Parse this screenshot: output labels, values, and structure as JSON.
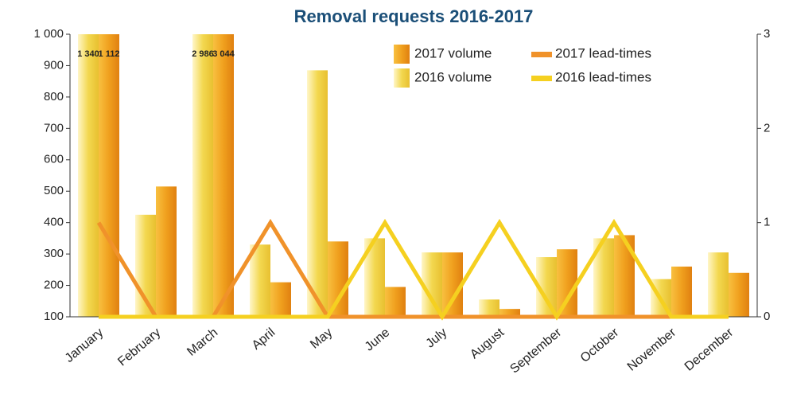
{
  "chart_data": {
    "type": "bar",
    "title": "Removal requests 2016-2017",
    "categories": [
      "January",
      "February",
      "March",
      "April",
      "May",
      "June",
      "July",
      "August",
      "September",
      "October",
      "November",
      "December"
    ],
    "series": [
      {
        "name": "2016 volume",
        "color": "#f3d850",
        "values": [
          1340,
          425,
          2986,
          330,
          885,
          350,
          305,
          155,
          290,
          350,
          220,
          305
        ],
        "value_labels": [
          "1 340",
          null,
          "2 986",
          null,
          null,
          null,
          null,
          null,
          null,
          null,
          null,
          null
        ]
      },
      {
        "name": "2017 volume",
        "color": "#f0a01e",
        "values": [
          1112,
          515,
          3044,
          210,
          340,
          195,
          305,
          125,
          315,
          360,
          260,
          240
        ],
        "value_labels": [
          "1 112",
          null,
          "3 044",
          null,
          null,
          null,
          null,
          null,
          null,
          null,
          null,
          null
        ]
      },
      {
        "name": "2017 lead-times",
        "color": "#f0922a",
        "axis": "y2",
        "type": "line",
        "values": [
          1,
          0,
          0,
          1,
          0,
          0,
          0,
          0,
          0,
          0,
          0,
          0
        ]
      },
      {
        "name": "2016 lead-times",
        "color": "#f5d020",
        "axis": "y2",
        "type": "line",
        "values": [
          0,
          0,
          0,
          0,
          0,
          1,
          0,
          1,
          0,
          1,
          0,
          0
        ]
      }
    ],
    "ylim": [
      100,
      1000
    ],
    "yticks": [
      100,
      200,
      300,
      400,
      500,
      600,
      700,
      800,
      900,
      {
        "value": 1000,
        "label": "1 000"
      }
    ],
    "y2lim": [
      0,
      3
    ],
    "y2ticks": [
      0,
      1,
      2,
      3
    ],
    "legend": "top-right"
  }
}
